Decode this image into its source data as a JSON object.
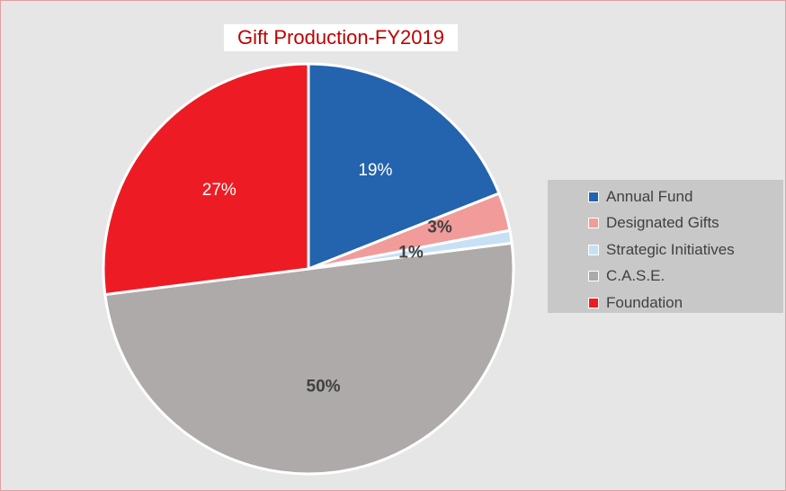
{
  "chart_data": {
    "type": "pie",
    "title": "Gift Production-FY2019",
    "categories": [
      "Annual Fund",
      "Designated Gifts",
      "Strategic Initiatives",
      "C.A.S.E.",
      "Foundation"
    ],
    "values": [
      19,
      3,
      1,
      50,
      27
    ],
    "labels": [
      "19%",
      "3%",
      "1%",
      "50%",
      "27%"
    ],
    "colors": [
      "#2463ad",
      "#f29b9b",
      "#c7e0f4",
      "#aeaaaa",
      "#ed1c24"
    ],
    "label_colors": [
      "#ffffff",
      "#404040",
      "#404040",
      "#404040",
      "#ffffff"
    ],
    "legend_position": "right"
  }
}
